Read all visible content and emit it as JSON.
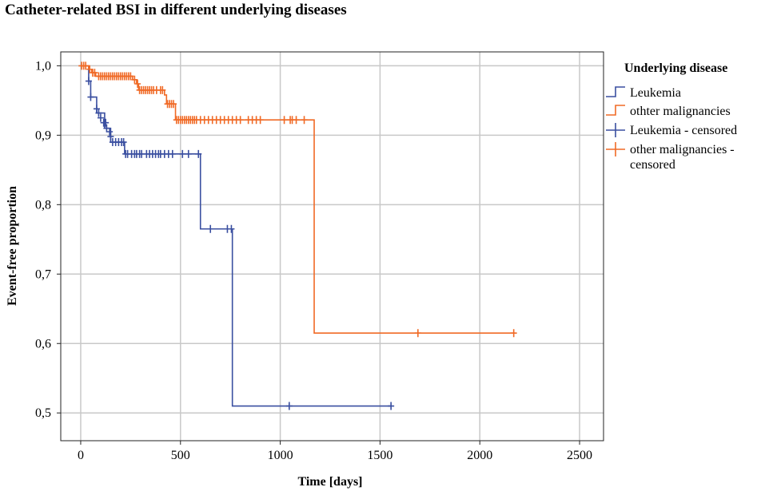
{
  "chart_data": {
    "type": "line",
    "subtype": "kaplan-meier",
    "title": "Catheter-related BSI in different underlying diseases",
    "xlabel": "Time [days]",
    "ylabel": "Event-free proportion",
    "xlim": [
      -100,
      2620
    ],
    "ylim": [
      0.46,
      1.02
    ],
    "xticks": [
      0,
      500,
      1000,
      1500,
      2000,
      2500
    ],
    "xtick_labels": [
      "0",
      "500",
      "1000",
      "1500",
      "2000",
      "2500"
    ],
    "yticks": [
      0.5,
      0.6,
      0.7,
      0.8,
      0.9,
      1.0
    ],
    "ytick_labels": [
      "0,5",
      "0,6",
      "0,7",
      "0,8",
      "0,9",
      "1,0"
    ],
    "grid": true,
    "legend_title": "Underlying disease",
    "legend_position": "right",
    "legend": [
      {
        "label": "Leukemia",
        "series": "leukemia",
        "kind": "step"
      },
      {
        "label": "othter malignancies",
        "series": "other",
        "kind": "step"
      },
      {
        "label": "Leukemia - censored",
        "series": "leukemia",
        "kind": "censor"
      },
      {
        "label_lines": [
          "other malignancies -",
          "censored"
        ],
        "series": "other",
        "kind": "censor"
      }
    ],
    "series": [
      {
        "name": "Leukemia",
        "id": "leukemia",
        "color": "#3a4fa0",
        "steps": [
          [
            0,
            1.0
          ],
          [
            20,
            1.0
          ],
          [
            40,
            0.978
          ],
          [
            50,
            0.955
          ],
          [
            80,
            0.932
          ],
          [
            120,
            0.91
          ],
          [
            150,
            0.89
          ],
          [
            220,
            0.873
          ],
          [
            600,
            0.765
          ],
          [
            760,
            0.51
          ],
          [
            1560,
            0.51
          ]
        ],
        "censored": [
          [
            40,
            0.978
          ],
          [
            50,
            0.955
          ],
          [
            80,
            0.938
          ],
          [
            90,
            0.932
          ],
          [
            100,
            0.925
          ],
          [
            115,
            0.918
          ],
          [
            125,
            0.918
          ],
          [
            130,
            0.91
          ],
          [
            145,
            0.905
          ],
          [
            150,
            0.898
          ],
          [
            160,
            0.89
          ],
          [
            175,
            0.89
          ],
          [
            190,
            0.89
          ],
          [
            205,
            0.89
          ],
          [
            215,
            0.89
          ],
          [
            225,
            0.873
          ],
          [
            235,
            0.873
          ],
          [
            255,
            0.873
          ],
          [
            270,
            0.873
          ],
          [
            280,
            0.873
          ],
          [
            295,
            0.873
          ],
          [
            305,
            0.873
          ],
          [
            330,
            0.873
          ],
          [
            345,
            0.873
          ],
          [
            360,
            0.873
          ],
          [
            375,
            0.873
          ],
          [
            390,
            0.873
          ],
          [
            400,
            0.873
          ],
          [
            420,
            0.873
          ],
          [
            440,
            0.873
          ],
          [
            460,
            0.873
          ],
          [
            510,
            0.873
          ],
          [
            540,
            0.873
          ],
          [
            590,
            0.873
          ],
          [
            650,
            0.765
          ],
          [
            735,
            0.765
          ],
          [
            755,
            0.765
          ],
          [
            1045,
            0.51
          ],
          [
            1555,
            0.51
          ]
        ]
      },
      {
        "name": "othter malignancies",
        "id": "other",
        "color": "#f06a26",
        "steps": [
          [
            0,
            1.0
          ],
          [
            30,
            1.0
          ],
          [
            40,
            0.995
          ],
          [
            55,
            0.99
          ],
          [
            75,
            0.985
          ],
          [
            260,
            0.98
          ],
          [
            280,
            0.974
          ],
          [
            290,
            0.965
          ],
          [
            420,
            0.958
          ],
          [
            430,
            0.945
          ],
          [
            475,
            0.922
          ],
          [
            1170,
            0.615
          ],
          [
            2175,
            0.615
          ]
        ],
        "censored": [
          [
            5,
            1.0
          ],
          [
            15,
            1.0
          ],
          [
            25,
            1.0
          ],
          [
            45,
            0.995
          ],
          [
            60,
            0.99
          ],
          [
            70,
            0.99
          ],
          [
            90,
            0.985
          ],
          [
            100,
            0.985
          ],
          [
            110,
            0.985
          ],
          [
            120,
            0.985
          ],
          [
            130,
            0.985
          ],
          [
            140,
            0.985
          ],
          [
            150,
            0.985
          ],
          [
            160,
            0.985
          ],
          [
            170,
            0.985
          ],
          [
            180,
            0.985
          ],
          [
            190,
            0.985
          ],
          [
            200,
            0.985
          ],
          [
            210,
            0.985
          ],
          [
            220,
            0.985
          ],
          [
            230,
            0.985
          ],
          [
            240,
            0.985
          ],
          [
            250,
            0.985
          ],
          [
            270,
            0.98
          ],
          [
            285,
            0.974
          ],
          [
            295,
            0.965
          ],
          [
            305,
            0.965
          ],
          [
            315,
            0.965
          ],
          [
            325,
            0.965
          ],
          [
            335,
            0.965
          ],
          [
            345,
            0.965
          ],
          [
            355,
            0.965
          ],
          [
            365,
            0.965
          ],
          [
            380,
            0.965
          ],
          [
            400,
            0.965
          ],
          [
            410,
            0.965
          ],
          [
            435,
            0.945
          ],
          [
            445,
            0.945
          ],
          [
            455,
            0.945
          ],
          [
            465,
            0.945
          ],
          [
            480,
            0.922
          ],
          [
            490,
            0.922
          ],
          [
            500,
            0.922
          ],
          [
            510,
            0.922
          ],
          [
            520,
            0.922
          ],
          [
            530,
            0.922
          ],
          [
            540,
            0.922
          ],
          [
            550,
            0.922
          ],
          [
            560,
            0.922
          ],
          [
            570,
            0.922
          ],
          [
            580,
            0.922
          ],
          [
            600,
            0.922
          ],
          [
            620,
            0.922
          ],
          [
            640,
            0.922
          ],
          [
            660,
            0.922
          ],
          [
            680,
            0.922
          ],
          [
            700,
            0.922
          ],
          [
            720,
            0.922
          ],
          [
            740,
            0.922
          ],
          [
            760,
            0.922
          ],
          [
            780,
            0.922
          ],
          [
            800,
            0.922
          ],
          [
            840,
            0.922
          ],
          [
            860,
            0.922
          ],
          [
            880,
            0.922
          ],
          [
            900,
            0.922
          ],
          [
            1020,
            0.922
          ],
          [
            1050,
            0.922
          ],
          [
            1060,
            0.922
          ],
          [
            1080,
            0.922
          ],
          [
            1120,
            0.922
          ],
          [
            1690,
            0.615
          ],
          [
            2170,
            0.615
          ]
        ]
      }
    ]
  }
}
